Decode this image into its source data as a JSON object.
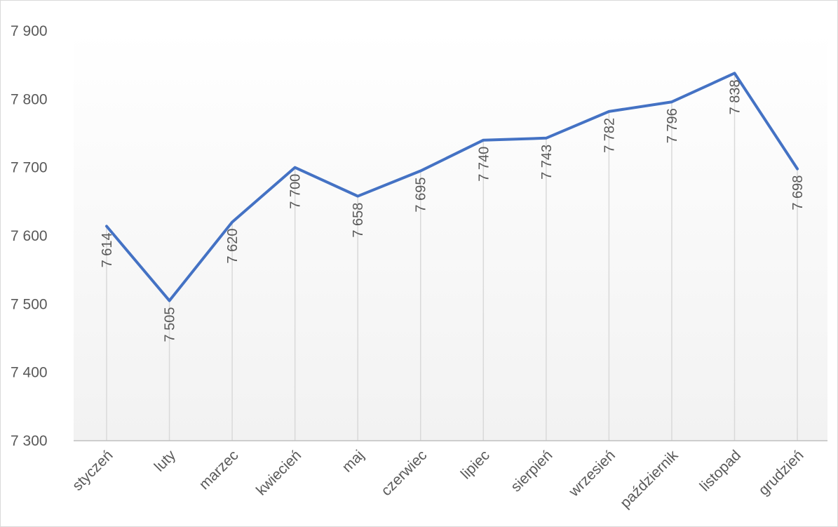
{
  "chart_data": {
    "type": "line",
    "title": "",
    "xlabel": "",
    "ylabel": "",
    "categories": [
      "styczeń",
      "luty",
      "marzec",
      "kwiecień",
      "maj",
      "czerwiec",
      "lipiec",
      "sierpień",
      "wrzesień",
      "październik",
      "listopad",
      "grudzień"
    ],
    "values": [
      7614,
      7505,
      7620,
      7700,
      7658,
      7695,
      7740,
      7743,
      7782,
      7796,
      7838,
      7698
    ],
    "value_labels": [
      "7 614",
      "7 505",
      "7 620",
      "7 700",
      "7 658",
      "7 695",
      "7 740",
      "7 743",
      "7 782",
      "7 796",
      "7 838",
      "7 698"
    ],
    "ylim": [
      7300,
      7900
    ],
    "yticks": [
      7300,
      7400,
      7500,
      7600,
      7700,
      7800,
      7900
    ],
    "ytick_labels": [
      "7 300",
      "7 400",
      "7 500",
      "7 600",
      "7 700",
      "7 800",
      "7 900"
    ],
    "line_color": "#4472c4",
    "drop_line_color": "#d9d9d9",
    "background_gradient": [
      "#ffffff",
      "#f2f2f2"
    ],
    "grid": false,
    "legend": "none"
  }
}
